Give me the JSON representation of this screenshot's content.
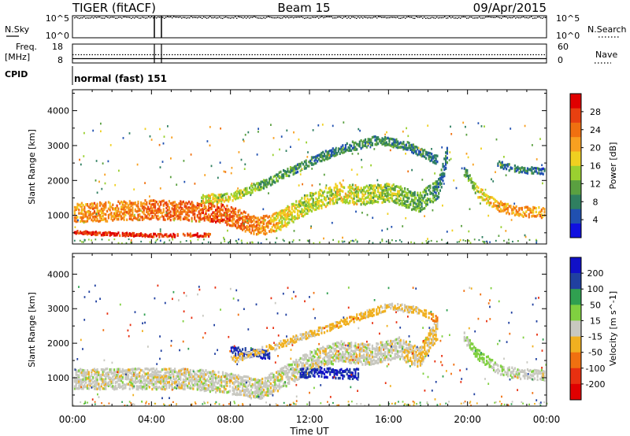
{
  "header": {
    "left": "TIGER (fitACF)",
    "center": "Beam 15",
    "right": "09/Apr/2015"
  },
  "strip_labels": {
    "nsky": "N.Sky",
    "nsearch": "N.Search",
    "freq_line1": "Freq.",
    "freq_line2": "[MHz]",
    "nave": "Nave",
    "cpid": "CPID",
    "cpid_value": "normal (fast) 151",
    "noise_top_left": "10^5",
    "noise_bottom_left": "10^0",
    "noise_top_right": "10^5",
    "noise_bottom_right": "10^0",
    "freq_top": "18",
    "freq_bottom": "8",
    "nave_top": "60",
    "nave_bottom": "0"
  },
  "chart_data": [
    {
      "type": "heatmap",
      "panel": "power",
      "xlabel": "",
      "ylabel": "Slant Range [km]",
      "x_ticks": [
        "00:00",
        "04:00",
        "08:00",
        "12:00",
        "16:00",
        "20:00",
        "00:00"
      ],
      "y_ticks": [
        1000,
        2000,
        3000,
        4000
      ],
      "ylim": [
        180,
        4600
      ],
      "colorbar": {
        "label": "Power [dB]",
        "ticks": [
          4,
          8,
          12,
          16,
          20,
          24,
          28
        ],
        "colors": [
          "#1010e0",
          "#2050b0",
          "#2f7f60",
          "#5aa040",
          "#9ad030",
          "#f0d020",
          "#f8a020",
          "#f07010",
          "#e84010",
          "#e00000"
        ]
      },
      "traces": [
        {
          "name": "band-main",
          "x": [
            0.0,
            2.0,
            4.0,
            6.0,
            7.5,
            8.5,
            9.5,
            10.5,
            12.0,
            13.5,
            14.5,
            16.0,
            17.5,
            18.5,
            19.0
          ],
          "y": [
            1100,
            1150,
            1200,
            1150,
            1100,
            900,
            700,
            900,
            1400,
            1700,
            1600,
            1700,
            1400,
            1800,
            2900
          ],
          "width": 550,
          "values": [
            22,
            22,
            24,
            25,
            26,
            24,
            22,
            18,
            15,
            16,
            16,
            14,
            12,
            9,
            8
          ]
        },
        {
          "name": "band-low",
          "x": [
            0.0,
            2.0,
            4.0,
            6.0,
            7.0
          ],
          "y": [
            550,
            500,
            460,
            470,
            470
          ],
          "width": 90,
          "values": [
            28,
            28,
            28,
            28,
            28
          ]
        },
        {
          "name": "band-upper",
          "x": [
            6.5,
            8.0,
            9.5,
            11.0,
            12.5,
            14.0,
            15.5,
            17.0,
            18.5
          ],
          "y": [
            1500,
            1550,
            1900,
            2300,
            2700,
            3000,
            3200,
            3000,
            2600
          ],
          "width": 250,
          "values": [
            16,
            16,
            12,
            10,
            8,
            8,
            9,
            8,
            6
          ]
        },
        {
          "name": "band-dusk",
          "x": [
            19.8,
            20.5,
            21.5,
            22.5,
            24.0
          ],
          "y": [
            2300,
            1700,
            1300,
            1150,
            1100
          ],
          "width": 300,
          "values": [
            10,
            16,
            20,
            22,
            22
          ]
        },
        {
          "name": "band-far",
          "x": [
            21.5,
            22.5,
            24.0
          ],
          "y": [
            2500,
            2350,
            2300
          ],
          "width": 180,
          "values": [
            8,
            7,
            6
          ]
        }
      ]
    },
    {
      "type": "heatmap",
      "panel": "velocity",
      "xlabel": "Time UT",
      "ylabel": "Slant Range [km]",
      "x_ticks": [
        "00:00",
        "04:00",
        "08:00",
        "12:00",
        "16:00",
        "20:00",
        "00:00"
      ],
      "y_ticks": [
        1000,
        2000,
        3000,
        4000
      ],
      "ylim": [
        180,
        4600
      ],
      "colorbar": {
        "label": "Velocity [m s^-1]",
        "ticks": [
          200,
          100,
          50,
          15,
          -15,
          -50,
          -100,
          -200
        ],
        "colors": [
          "#1010c8",
          "#2040a0",
          "#30a050",
          "#80d040",
          "#c8c8c0",
          "#f0b020",
          "#f07010",
          "#e83010",
          "#e00000"
        ]
      },
      "traces": [
        {
          "name": "ground-main",
          "x": [
            0.0,
            3.0,
            6.0,
            7.5,
            8.5,
            9.5,
            10.5,
            12.0,
            13.5,
            15.0,
            16.5,
            17.5,
            18.5
          ],
          "y": [
            1000,
            1000,
            1000,
            900,
            800,
            700,
            1000,
            1500,
            1800,
            1700,
            1900,
            1600,
            2500
          ],
          "width": 600,
          "values": [
            0,
            0,
            0,
            0,
            0,
            0,
            0,
            0,
            0,
            0,
            0,
            -20,
            -20
          ]
        },
        {
          "name": "blue-patch",
          "x": [
            11.5,
            12.5,
            13.5,
            14.5
          ],
          "y": [
            1150,
            1200,
            1150,
            1150
          ],
          "width": 280,
          "values": [
            200,
            200,
            200,
            200
          ]
        },
        {
          "name": "blue-patch-2",
          "x": [
            8.0,
            9.0,
            10.0
          ],
          "y": [
            1800,
            1750,
            1700
          ],
          "width": 250,
          "values": [
            200,
            200,
            200
          ]
        },
        {
          "name": "upper-ground",
          "x": [
            8.0,
            10.0,
            12.0,
            14.0,
            16.0,
            17.5,
            18.5
          ],
          "y": [
            1550,
            1900,
            2300,
            2700,
            3100,
            3000,
            2700
          ],
          "width": 200,
          "values": [
            -20,
            -20,
            -20,
            -40,
            -20,
            -20,
            -60
          ]
        },
        {
          "name": "dusk",
          "x": [
            19.8,
            20.5,
            21.5,
            22.5,
            24.0
          ],
          "y": [
            2200,
            1700,
            1300,
            1150,
            1100
          ],
          "width": 300,
          "values": [
            0,
            40,
            10,
            0,
            0
          ]
        }
      ]
    }
  ]
}
